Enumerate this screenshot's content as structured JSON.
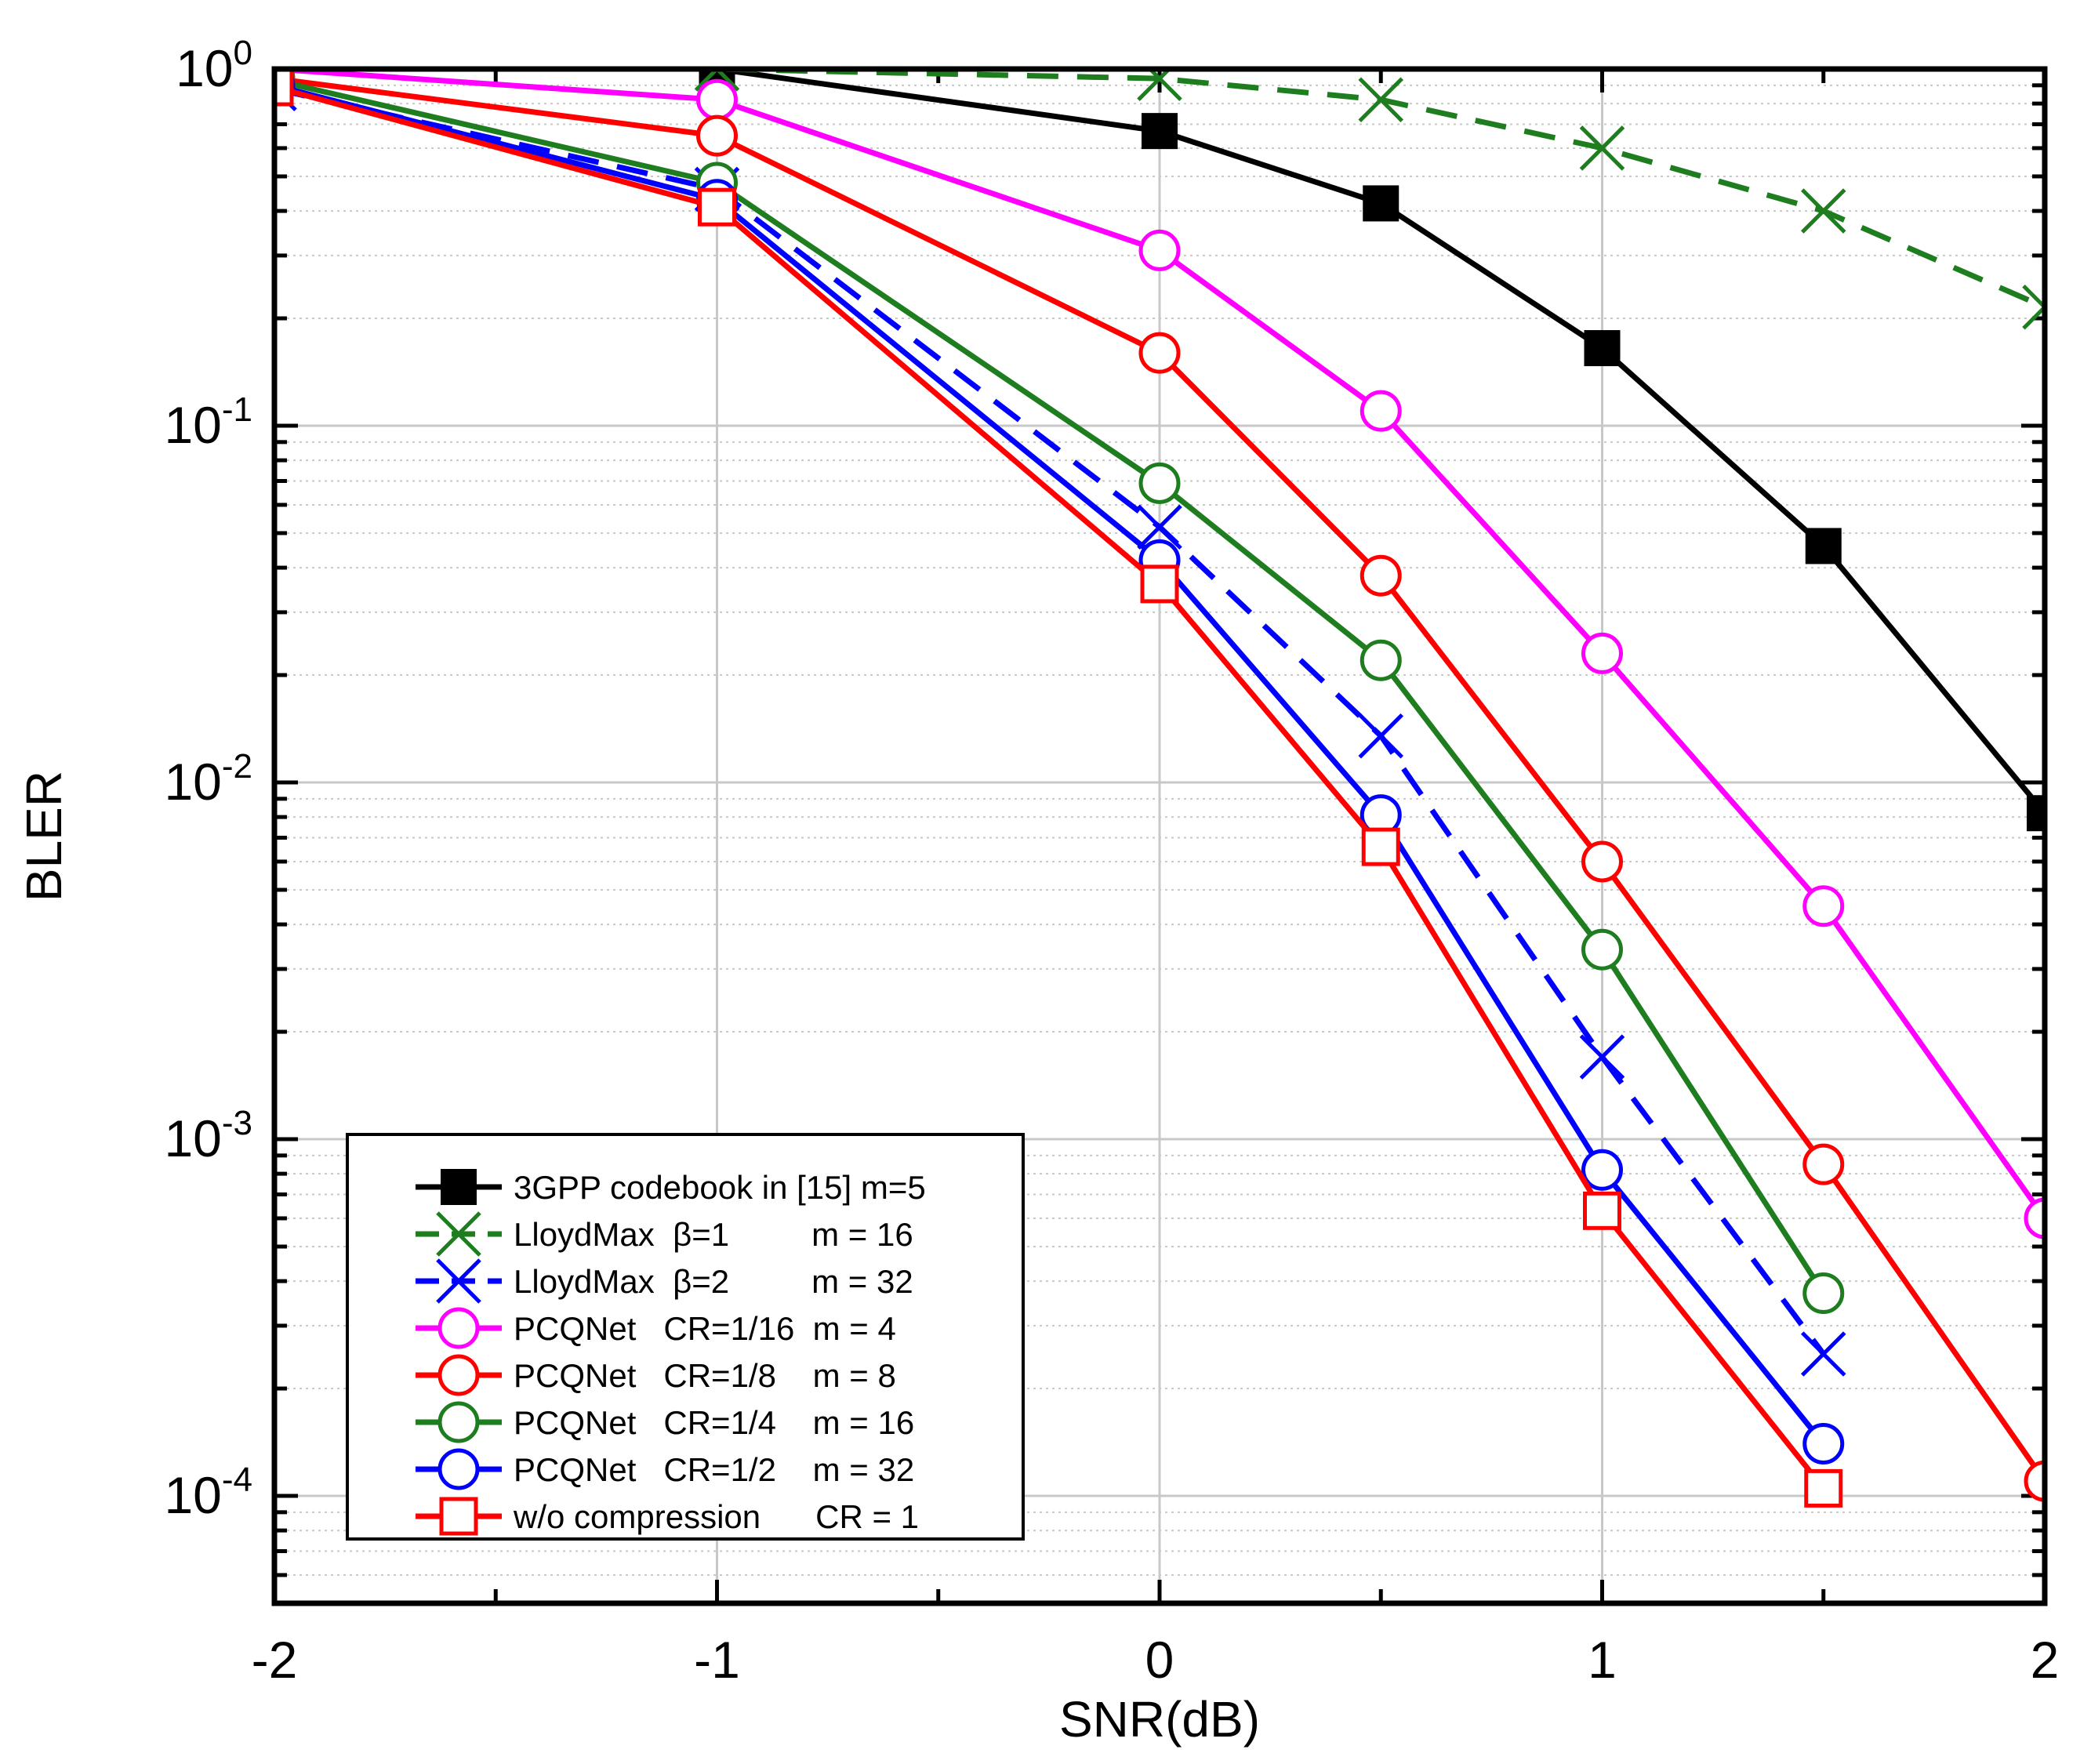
{
  "chart_data": {
    "type": "line",
    "title": "",
    "xlabel": "SNR(dB)",
    "ylabel": "BLER",
    "xlim": [
      -2,
      2
    ],
    "ylim": [
      5e-05,
      1
    ],
    "yscale": "log",
    "grid": true,
    "x_ticks": [
      {
        "value": -2,
        "label": "-2"
      },
      {
        "value": -1,
        "label": "-1"
      },
      {
        "value": 0,
        "label": "0"
      },
      {
        "value": 1,
        "label": "1"
      },
      {
        "value": 2,
        "label": "2"
      }
    ],
    "y_ticks": [
      {
        "value": 1,
        "base": "10",
        "exp": "0"
      },
      {
        "value": 0.1,
        "base": "10",
        "exp": "-1"
      },
      {
        "value": 0.01,
        "base": "10",
        "exp": "-2"
      },
      {
        "value": 0.001,
        "base": "10",
        "exp": "-3"
      },
      {
        "value": 0.0001,
        "base": "10",
        "exp": "-4"
      }
    ],
    "legend_position": "bottom-left",
    "series": [
      {
        "name": "3GPP codebook in [15] m=5",
        "color": "#000000",
        "dash": "solid",
        "marker": "filled-square",
        "x": [
          -2,
          -1,
          0,
          0.5,
          1,
          1.5,
          2
        ],
        "values": [
          1.0,
          1.0,
          0.67,
          0.42,
          0.165,
          0.046,
          0.0082
        ]
      },
      {
        "name": "LloydMax  β=1         m = 16",
        "color": "#1e7d1e",
        "dash": "dashed",
        "marker": "x",
        "x": [
          -2,
          -1,
          0,
          0.5,
          1,
          1.5,
          2
        ],
        "values": [
          1.0,
          1.0,
          0.94,
          0.82,
          0.6,
          0.4,
          0.215
        ]
      },
      {
        "name": "LloydMax  β=2         m = 32",
        "color": "#0000ff",
        "dash": "dashed",
        "marker": "x",
        "x": [
          -2,
          -1,
          0,
          0.5,
          1,
          1.5
        ],
        "values": [
          0.88,
          0.46,
          0.052,
          0.0135,
          0.0017,
          0.00025
        ]
      },
      {
        "name": "PCQNet   CR=1/16  m = 4",
        "color": "#ff00ff",
        "dash": "solid",
        "marker": "open-circle",
        "x": [
          -2,
          -1,
          0,
          0.5,
          1,
          1.5,
          2
        ],
        "values": [
          1.0,
          0.82,
          0.31,
          0.11,
          0.023,
          0.0045,
          0.0006
        ]
      },
      {
        "name": "PCQNet   CR=1/8    m = 8",
        "color": "#ff0000",
        "dash": "solid",
        "marker": "open-circle",
        "x": [
          -2,
          -1,
          0,
          0.5,
          1,
          1.5,
          2
        ],
        "values": [
          0.94,
          0.65,
          0.16,
          0.038,
          0.006,
          0.00085,
          0.00011
        ]
      },
      {
        "name": "PCQNet   CR=1/4    m = 16",
        "color": "#1e7d1e",
        "dash": "solid",
        "marker": "open-circle",
        "x": [
          -2,
          -1,
          0,
          0.5,
          1,
          1.5
        ],
        "values": [
          0.93,
          0.48,
          0.069,
          0.022,
          0.0034,
          0.00037
        ]
      },
      {
        "name": "PCQNet   CR=1/2    m = 32",
        "color": "#0000ff",
        "dash": "solid",
        "marker": "open-circle",
        "x": [
          -2,
          -1,
          0,
          0.5,
          1,
          1.5
        ],
        "values": [
          0.9,
          0.43,
          0.042,
          0.0081,
          0.00082,
          0.00014
        ]
      },
      {
        "name": "w/o compression      CR = 1",
        "color": "#ff0000",
        "dash": "solid",
        "marker": "open-square",
        "x": [
          -2,
          -1,
          0,
          0.5,
          1,
          1.5
        ],
        "values": [
          0.89,
          0.41,
          0.036,
          0.0066,
          0.00063,
          0.000105
        ]
      }
    ]
  }
}
